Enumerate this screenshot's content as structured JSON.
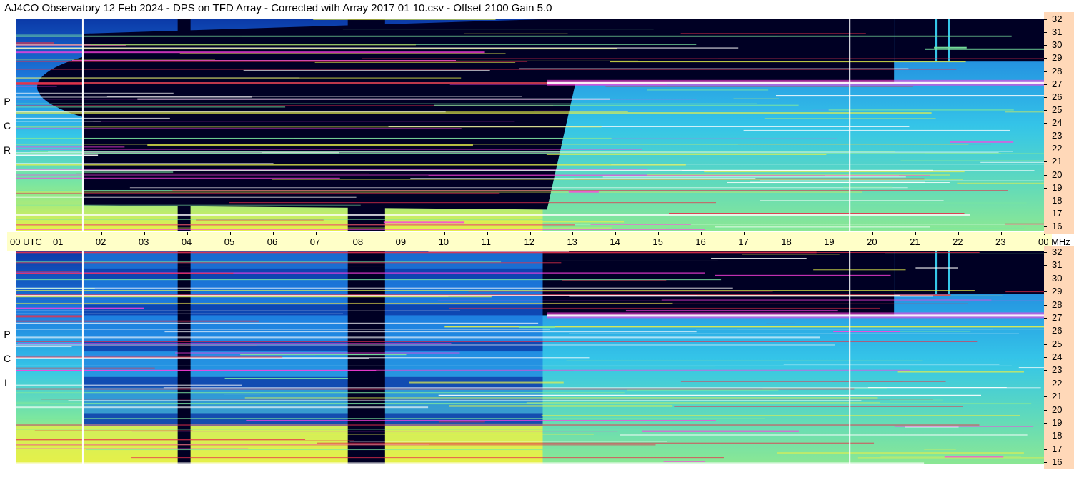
{
  "title": "AJ4CO Observatory  12 Feb 2024  -  DPS on TFD Array  -  Corrected with Array 2017 01 10.csv  -  Offset 2100  Gain 5.0",
  "panels": {
    "top": {
      "label": [
        "R",
        "C",
        "P"
      ]
    },
    "bottom": {
      "label": [
        "L",
        "C",
        "P"
      ]
    }
  },
  "chart_data": {
    "type": "heatmap",
    "title": "AJ4CO Observatory  12 Feb 2024  -  DPS on TFD Array  -  Corrected with Array 2017 01 10.csv  -  Offset 2100  Gain 5.0",
    "xlabel": "UTC",
    "ylabel": "MHz",
    "x_ticks": [
      "00  UTC",
      "01",
      "02",
      "03",
      "04",
      "05",
      "06",
      "07",
      "08",
      "09",
      "10",
      "11",
      "12",
      "13",
      "14",
      "15",
      "16",
      "17",
      "18",
      "19",
      "20",
      "21",
      "22",
      "23",
      "00 MHz"
    ],
    "x_range_hours": [
      0,
      24
    ],
    "y_ticks": [
      "32",
      "31",
      "30",
      "29",
      "28",
      "27",
      "26",
      "25",
      "24",
      "23",
      "22",
      "21",
      "20",
      "19",
      "18",
      "17",
      "16"
    ],
    "y_range_mhz": [
      16,
      32
    ],
    "series": [
      {
        "name": "R C P"
      },
      {
        "name": "L C P"
      }
    ],
    "colors": {
      "background_night": "#000024",
      "deep_blue": "#0b3aa8",
      "blue": "#1e7fe0",
      "cyan": "#35c6e8",
      "green": "#7be6a0",
      "yellow": "#e6f04a",
      "red": "#e8304a",
      "magenta": "#ff40e0",
      "white": "#ffffff"
    }
  }
}
